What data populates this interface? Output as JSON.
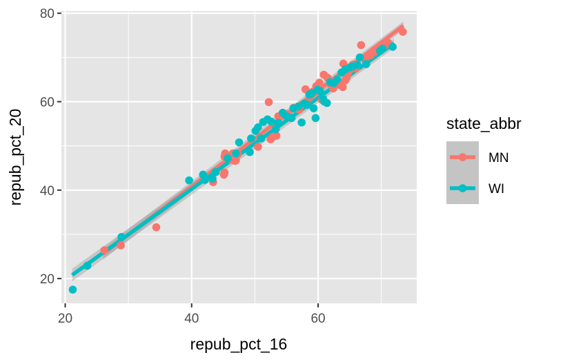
{
  "chart_data": {
    "type": "scatter",
    "xlabel": "repub_pct_16",
    "ylabel": "repub_pct_20",
    "xlim": [
      19.4,
      75.6
    ],
    "ylim": [
      14.4,
      80.5
    ],
    "x_ticks": [
      20,
      40,
      60
    ],
    "x_tick_labels": [
      "20",
      "40",
      "60"
    ],
    "y_ticks": [
      20,
      40,
      60,
      80
    ],
    "y_tick_labels": [
      "20",
      "40",
      "60",
      "80"
    ],
    "grid": true,
    "panel_background": "#e5e5e5",
    "legend": {
      "title": "state_abbr",
      "position": "right",
      "background": "#c4c4c4",
      "entries": [
        "MN",
        "WI"
      ]
    },
    "series": [
      {
        "name": "MN",
        "color": "#f8766d",
        "fit_line": {
          "x": [
            26.0,
            73.5
          ],
          "y": [
            25.6,
            77.2
          ]
        },
        "confidence_band_halfwidth": 0.8,
        "points": [
          [
            26.2,
            26.4
          ],
          [
            28.8,
            27.5
          ],
          [
            34.4,
            31.6
          ],
          [
            43.4,
            41.8
          ],
          [
            45.1,
            43.5
          ],
          [
            45.2,
            44.0
          ],
          [
            45.2,
            47.6
          ],
          [
            45.3,
            48.3
          ],
          [
            46.3,
            46.9
          ],
          [
            46.5,
            48.3
          ],
          [
            46.9,
            46.6
          ],
          [
            47.0,
            46.8
          ],
          [
            47.3,
            48.1
          ],
          [
            50.5,
            49.8
          ],
          [
            52.2,
            59.9
          ],
          [
            52.5,
            51.5
          ],
          [
            52.8,
            52.0
          ],
          [
            53.4,
            52.3
          ],
          [
            53.7,
            56.7
          ],
          [
            55.2,
            57.2
          ],
          [
            56.1,
            58.6
          ],
          [
            57.0,
            58.2
          ],
          [
            57.4,
            59.3
          ],
          [
            58.0,
            62.8
          ],
          [
            58.3,
            59.7
          ],
          [
            58.8,
            61.1
          ],
          [
            59.2,
            62.3
          ],
          [
            59.5,
            62.0
          ],
          [
            59.7,
            63.5
          ],
          [
            60.2,
            64.3
          ],
          [
            60.6,
            60.4
          ],
          [
            60.9,
            66.1
          ],
          [
            61.5,
            65.4
          ],
          [
            62.0,
            63.9
          ],
          [
            62.4,
            63.0
          ],
          [
            63.0,
            64.5
          ],
          [
            63.4,
            63.8
          ],
          [
            63.9,
            63.3
          ],
          [
            64.3,
            64.8
          ],
          [
            64.5,
            65.3
          ],
          [
            64.7,
            66.4
          ],
          [
            65.0,
            67.2
          ],
          [
            64.0,
            68.6
          ],
          [
            65.5,
            68.4
          ],
          [
            66.0,
            67.5
          ],
          [
            66.8,
            72.8
          ],
          [
            67.4,
            69.5
          ],
          [
            68.3,
            70.5
          ],
          [
            69.0,
            71.3
          ],
          [
            69.5,
            71.9
          ],
          [
            70.5,
            72.5
          ],
          [
            71.1,
            73.3
          ],
          [
            73.4,
            75.8
          ]
        ]
      },
      {
        "name": "WI",
        "color": "#00bfc4",
        "fit_line": {
          "x": [
            21.1,
            72.0
          ],
          "y": [
            20.8,
            73.2
          ]
        },
        "confidence_band_halfwidth": 0.9,
        "points": [
          [
            21.2,
            17.5
          ],
          [
            23.5,
            22.9
          ],
          [
            28.9,
            29.4
          ],
          [
            39.6,
            42.2
          ],
          [
            41.8,
            43.5
          ],
          [
            42.1,
            42.3
          ],
          [
            43.3,
            42.6
          ],
          [
            43.8,
            44.1
          ],
          [
            45.7,
            47.2
          ],
          [
            47.0,
            48.3
          ],
          [
            47.5,
            50.8
          ],
          [
            49.2,
            48.6
          ],
          [
            49.4,
            51.7
          ],
          [
            50.1,
            53.4
          ],
          [
            50.5,
            54.2
          ],
          [
            51.0,
            51.7
          ],
          [
            51.3,
            55.4
          ],
          [
            52.0,
            56.0
          ],
          [
            52.6,
            55.5
          ],
          [
            53.3,
            53.8
          ],
          [
            53.7,
            55.2
          ],
          [
            54.4,
            57.5
          ],
          [
            55.0,
            56.7
          ],
          [
            55.8,
            56.3
          ],
          [
            56.1,
            58.5
          ],
          [
            56.9,
            58.9
          ],
          [
            57.4,
            55.3
          ],
          [
            57.8,
            59.6
          ],
          [
            58.3,
            59.3
          ],
          [
            58.6,
            61.6
          ],
          [
            59.0,
            61.9
          ],
          [
            59.3,
            58.5
          ],
          [
            59.6,
            56.3
          ],
          [
            59.9,
            62.7
          ],
          [
            60.3,
            62.4
          ],
          [
            60.8,
            60.7
          ],
          [
            61.0,
            60.0
          ],
          [
            61.4,
            59.7
          ],
          [
            61.9,
            64.4
          ],
          [
            62.5,
            64.2
          ],
          [
            63.0,
            65.0
          ],
          [
            63.7,
            66.6
          ],
          [
            64.3,
            67.3
          ],
          [
            65.1,
            67.8
          ],
          [
            65.5,
            68.0
          ],
          [
            66.2,
            68.3
          ],
          [
            66.6,
            70.0
          ],
          [
            67.6,
            68.5
          ],
          [
            69.8,
            71.5
          ],
          [
            70.2,
            72.0
          ],
          [
            71.8,
            72.4
          ]
        ]
      }
    ]
  }
}
